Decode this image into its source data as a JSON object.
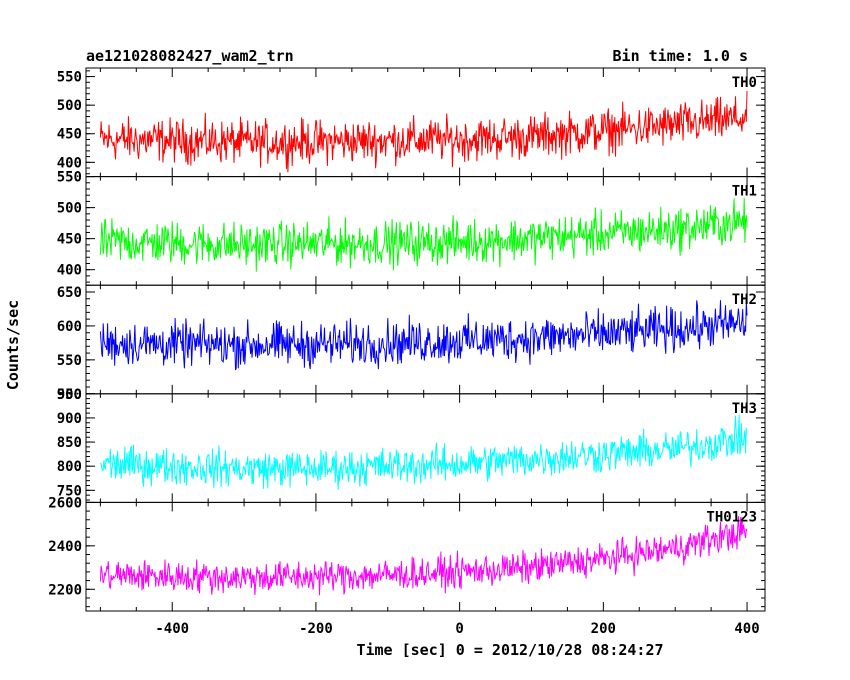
{
  "header": {
    "title": "ae121028082427_wam2_trn",
    "bin_time": "Bin time: 1.0 s"
  },
  "axes": {
    "xlabel": "Time [sec] 0 = 2012/10/28 08:24:27",
    "ylabel": "Counts/sec"
  },
  "chart_data": {
    "type": "line",
    "title": "ae121028082427_wam2_trn",
    "xlabel": "Time [sec] 0 = 2012/10/28 08:24:27",
    "ylabel": "Counts/sec",
    "xlim": [
      -520,
      425
    ],
    "xticks": [
      -400,
      -200,
      0,
      200,
      400
    ],
    "grid": false,
    "panels": [
      {
        "name": "TH0",
        "color": "#ff0000",
        "ylim": [
          375,
          565
        ],
        "yticks": [
          400,
          450,
          500,
          550
        ],
        "x": [
          -500,
          -400,
          -300,
          -200,
          -100,
          0,
          100,
          200,
          300,
          400
        ],
        "mean": [
          440,
          438,
          435,
          436,
          438,
          440,
          445,
          455,
          465,
          478
        ],
        "noise": 28
      },
      {
        "name": "TH1",
        "color": "#00ff00",
        "ylim": [
          375,
          550
        ],
        "yticks": [
          400,
          450,
          500,
          550
        ],
        "x": [
          -500,
          -400,
          -300,
          -200,
          -100,
          0,
          100,
          200,
          300,
          400
        ],
        "mean": [
          445,
          443,
          440,
          442,
          443,
          445,
          450,
          458,
          465,
          478
        ],
        "noise": 26
      },
      {
        "name": "TH2",
        "color": "#0000ff",
        "ylim": [
          500,
          660
        ],
        "yticks": [
          500,
          550,
          600,
          650
        ],
        "x": [
          -500,
          -400,
          -300,
          -200,
          -100,
          0,
          100,
          200,
          300,
          400
        ],
        "mean": [
          575,
          573,
          572,
          573,
          575,
          578,
          582,
          588,
          595,
          605
        ],
        "noise": 24
      },
      {
        "name": "TH3",
        "color": "#00ffff",
        "ylim": [
          725,
          950
        ],
        "yticks": [
          750,
          800,
          850,
          900,
          950
        ],
        "x": [
          -500,
          -400,
          -300,
          -200,
          -100,
          0,
          100,
          200,
          300,
          400
        ],
        "mean": [
          805,
          800,
          795,
          795,
          800,
          805,
          815,
          825,
          835,
          860
        ],
        "noise": 28
      },
      {
        "name": "TH0123",
        "color": "#ff00ff",
        "ylim": [
          2100,
          2600
        ],
        "yticks": [
          2200,
          2400,
          2600
        ],
        "x": [
          -500,
          -400,
          -300,
          -200,
          -100,
          0,
          100,
          200,
          300,
          400
        ],
        "mean": [
          2265,
          2260,
          2255,
          2258,
          2265,
          2280,
          2300,
          2340,
          2390,
          2470
        ],
        "noise": 55
      }
    ]
  }
}
